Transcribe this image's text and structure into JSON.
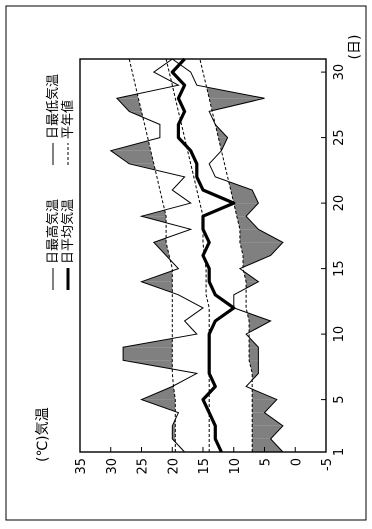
{
  "chart_data": {
    "type": "line",
    "title": "",
    "xlabel": "(日)",
    "ylabel": "(℃)気温",
    "orientation": "rotated-90-ccw",
    "x": [
      1,
      2,
      3,
      4,
      5,
      6,
      7,
      8,
      9,
      10,
      11,
      12,
      13,
      14,
      15,
      16,
      17,
      18,
      19,
      20,
      21,
      22,
      23,
      24,
      25,
      26,
      27,
      28,
      29,
      30,
      31
    ],
    "xlim": [
      1,
      31
    ],
    "ylim": [
      -5,
      35
    ],
    "x_ticks": [
      "1",
      "5",
      "10",
      "15",
      "20",
      "25",
      "30"
    ],
    "y_ticks": [
      "35",
      "30",
      "25",
      "20",
      "15",
      "10",
      "5",
      "0",
      "-5"
    ],
    "grid": false,
    "legend_position": "top",
    "series": [
      {
        "name": "日最高気温",
        "style": "thin-solid",
        "color": "#000000",
        "values": [
          18,
          20,
          20,
          19,
          25,
          20,
          16,
          28,
          28,
          16,
          18,
          15,
          19,
          25,
          19,
          21,
          23,
          17,
          25,
          17,
          20,
          18,
          27,
          30,
          22,
          22,
          27,
          29,
          19,
          23,
          20
        ]
      },
      {
        "name": "日平均気温",
        "style": "thick-solid",
        "color": "#000000",
        "values": [
          12,
          13,
          13,
          14,
          15,
          13,
          14,
          14,
          14,
          14,
          13,
          10,
          13,
          14,
          14,
          15,
          14,
          15,
          15,
          10,
          15,
          16,
          16,
          17,
          19,
          19,
          18,
          19,
          18,
          20,
          18
        ]
      },
      {
        "name": "日最低気温",
        "style": "thin-solid",
        "color": "#000000",
        "values": [
          2,
          4,
          2,
          5,
          3,
          8,
          6,
          6,
          6,
          8,
          4,
          10,
          10,
          6,
          9,
          4,
          2,
          6,
          8,
          6,
          7,
          13,
          14,
          12,
          11,
          13,
          14,
          5,
          16,
          17,
          20
        ]
      },
      {
        "name": "平年値",
        "style": "dashed",
        "color": "#000000",
        "values_high": [
          19.5,
          19.5,
          19.5,
          19.5,
          19.5,
          19.8,
          20,
          20,
          20,
          20,
          20,
          20,
          20,
          20,
          20,
          20.5,
          21,
          21,
          21,
          21.5,
          22,
          22.5,
          23,
          23.5,
          24,
          24.5,
          25,
          25.5,
          26,
          26.5,
          27
        ],
        "values_avg": [
          14,
          14,
          14,
          14,
          14,
          14,
          14,
          14,
          14,
          14,
          14,
          14,
          14.5,
          14.5,
          14.5,
          14.8,
          15,
          15,
          15,
          15.5,
          16,
          16.5,
          17,
          17.5,
          18,
          18.5,
          19,
          19.5,
          20,
          20.5,
          21
        ],
        "values_low": [
          7,
          7,
          7,
          7,
          7,
          7,
          7,
          7.5,
          7.5,
          7.5,
          7.5,
          8,
          8,
          8,
          8.5,
          8.5,
          9,
          9,
          9.5,
          10,
          10.5,
          11,
          11.5,
          12,
          12.5,
          13,
          13.5,
          14,
          14.5,
          15,
          15.5
        ]
      }
    ],
    "shading": "gray fill where observed max exceeds normal max and where observed min falls below normal min",
    "shade_color": "#808080"
  }
}
